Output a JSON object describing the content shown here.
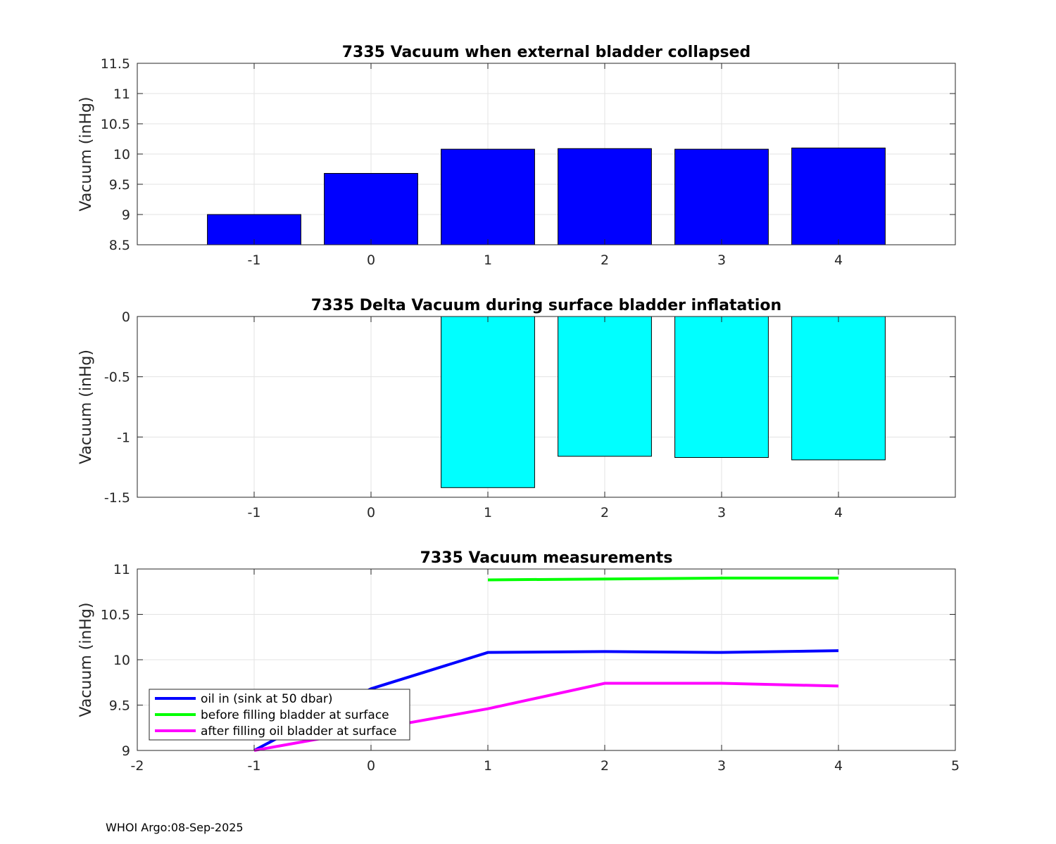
{
  "chart_data": [
    {
      "type": "bar",
      "title": "7335 Vacuum when external bladder collapsed",
      "xlabel": "",
      "ylabel": "Vacuum (inHg)",
      "xlim": [
        -2,
        5
      ],
      "ylim": [
        8.5,
        11.5
      ],
      "grid": true,
      "bar_width": 0.8,
      "color": "#0000ff",
      "x": [
        -1,
        0,
        1,
        2,
        3,
        4
      ],
      "values": [
        9.0,
        9.68,
        10.08,
        10.09,
        10.08,
        10.1
      ],
      "xticks": [
        "-1",
        "0",
        "1",
        "2",
        "3",
        "4"
      ],
      "yticks": [
        "8.5",
        "9",
        "9.5",
        "10",
        "10.5",
        "11",
        "11.5"
      ]
    },
    {
      "type": "bar",
      "title": "7335 Delta Vacuum during surface bladder inflatation",
      "xlabel": "",
      "ylabel": "Vacuum (inHg)",
      "xlim": [
        -2,
        5
      ],
      "ylim": [
        -1.5,
        0
      ],
      "grid": true,
      "bar_width": 0.8,
      "color": "#00ffff",
      "x": [
        -1,
        0,
        1,
        2,
        3,
        4
      ],
      "values": [
        0,
        0,
        -1.42,
        -1.16,
        -1.17,
        -1.19
      ],
      "xticks": [
        "-1",
        "0",
        "1",
        "2",
        "3",
        "4"
      ],
      "yticks": [
        "-1.5",
        "-1",
        "-0.5",
        "0"
      ]
    },
    {
      "type": "line",
      "title": "7335 Vacuum measurements",
      "xlabel": "",
      "ylabel": "Vacuum (inHg)",
      "xlim": [
        -2,
        5
      ],
      "ylim": [
        9,
        11
      ],
      "grid": true,
      "legend_position": "bottom-left",
      "xticks": [
        "-2",
        "-1",
        "0",
        "1",
        "2",
        "3",
        "4",
        "5"
      ],
      "yticks": [
        "9",
        "9.5",
        "10",
        "10.5",
        "11"
      ],
      "series": [
        {
          "name": "oil in (sink at 50 dbar)",
          "color": "#0000ff",
          "x": [
            -1,
            0,
            1,
            2,
            3,
            4
          ],
          "y": [
            9.0,
            9.68,
            10.08,
            10.09,
            10.08,
            10.1
          ]
        },
        {
          "name": "before filling bladder at surface",
          "color": "#00ff00",
          "x": [
            1,
            2,
            3,
            4
          ],
          "y": [
            10.88,
            10.89,
            10.9,
            10.9
          ]
        },
        {
          "name": "after filling oil bladder at surface",
          "color": "#ff00ff",
          "x": [
            -1,
            0,
            1,
            2,
            3,
            4
          ],
          "y": [
            9.0,
            9.23,
            9.46,
            9.74,
            9.74,
            9.71
          ]
        }
      ]
    }
  ],
  "footer": "WHOI Argo:08-Sep-2025"
}
